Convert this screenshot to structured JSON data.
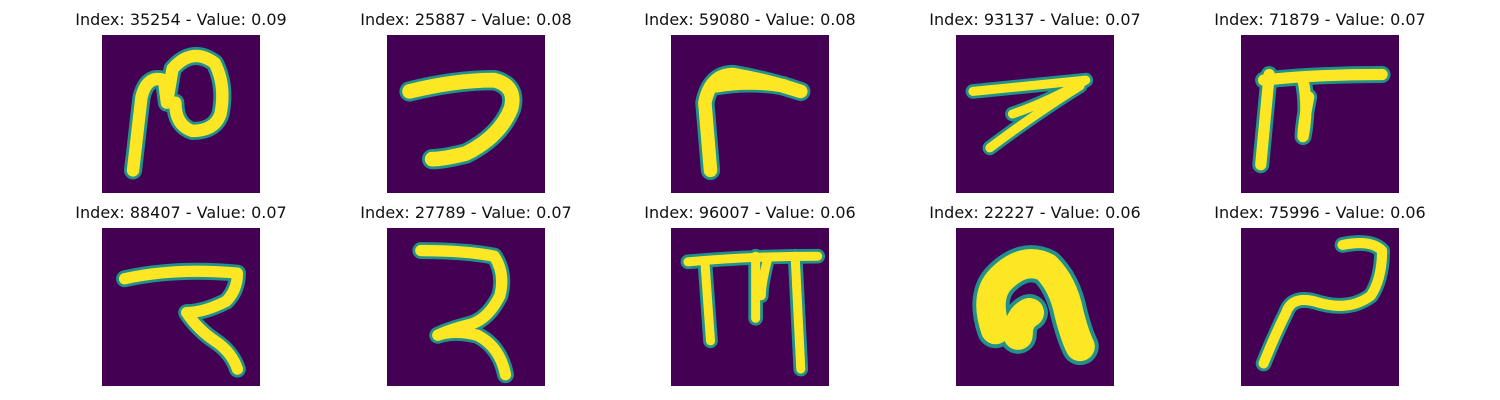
{
  "colors": {
    "background": "#440154",
    "mid": "#21918c",
    "stroke": "#fde725"
  },
  "panels": [
    {
      "title": "Index: 35254 - Value: 0.09",
      "glyph": "loop-stroke-icon"
    },
    {
      "title": "Index: 25887 - Value: 0.08",
      "glyph": "hook-stroke-icon"
    },
    {
      "title": "Index: 59080 - Value: 0.08",
      "glyph": "angle-stroke-icon"
    },
    {
      "title": "Index: 93137 - Value: 0.07",
      "glyph": "seven-stroke-icon"
    },
    {
      "title": "Index: 71879 - Value: 0.07",
      "glyph": "double-leg-stroke-icon"
    },
    {
      "title": "Index: 88407 - Value: 0.07",
      "glyph": "zigzag-stroke-icon"
    },
    {
      "title": "Index: 27789 - Value: 0.07",
      "glyph": "reverse-s-stroke-icon"
    },
    {
      "title": "Index: 96007 - Value: 0.06",
      "glyph": "comb-stroke-icon"
    },
    {
      "title": "Index: 22227 - Value: 0.06",
      "glyph": "blob-stroke-icon"
    },
    {
      "title": "Index: 75996 - Value: 0.06",
      "glyph": "tilde-stroke-icon"
    }
  ]
}
